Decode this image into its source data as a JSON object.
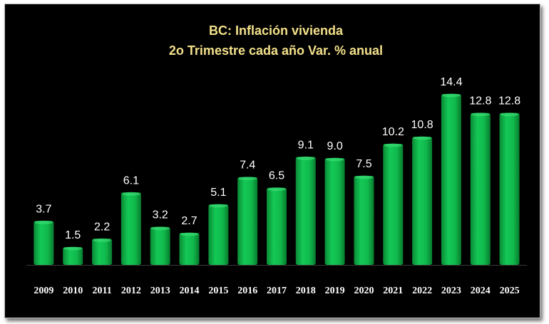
{
  "chart_data": {
    "type": "bar",
    "title": "BC: Inflación vivienda",
    "subtitle": "2o Trimestre cada año Var. % anual",
    "xlabel": "",
    "ylabel": "",
    "ylim": [
      0,
      16
    ],
    "grid": false,
    "legend": "none",
    "bar_color": "#0fba4a",
    "categories": [
      "2009",
      "2010",
      "2011",
      "2012",
      "2013",
      "2014",
      "2015",
      "2016",
      "2017",
      "2018",
      "2019",
      "2020",
      "2021",
      "2022",
      "2023",
      "2024",
      "2025"
    ],
    "values": [
      3.7,
      1.5,
      2.2,
      6.1,
      3.2,
      2.7,
      5.1,
      7.4,
      6.5,
      9.1,
      9.0,
      7.5,
      10.2,
      10.8,
      14.4,
      12.8,
      12.8
    ],
    "data_labels": [
      "3.7",
      "1.5",
      "2.2",
      "6.1",
      "3.2",
      "2.7",
      "5.1",
      "7.4",
      "6.5",
      "9.1",
      "9.0",
      "7.5",
      "10.2",
      "10.8",
      "14.4",
      "12.8",
      "12.8"
    ]
  }
}
